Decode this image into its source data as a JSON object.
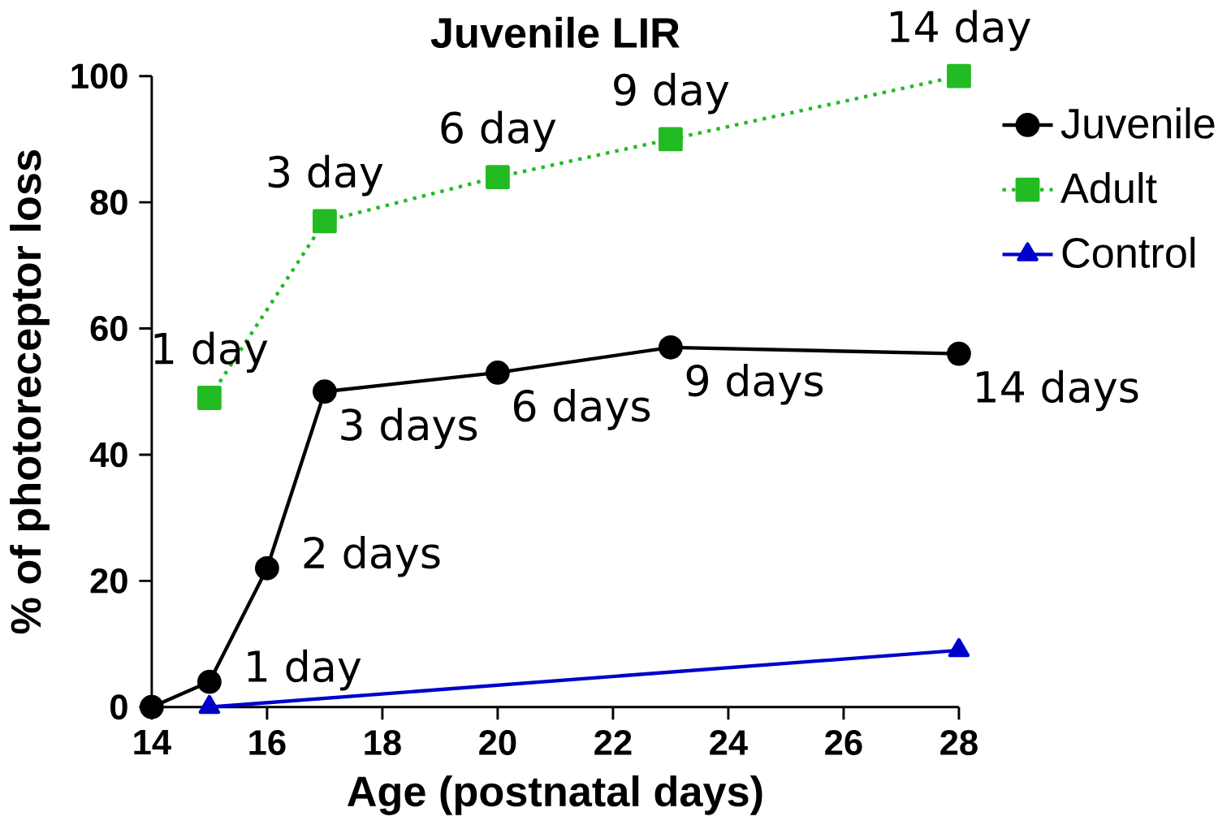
{
  "chart_data": {
    "type": "line",
    "title": "Juvenile LIR",
    "xlabel": "Age (postnatal days)",
    "ylabel": "% of photoreceptor loss",
    "xlim": [
      14,
      28
    ],
    "ylim": [
      0,
      100
    ],
    "xticks": [
      14,
      16,
      18,
      20,
      22,
      24,
      26,
      28
    ],
    "yticks": [
      0,
      20,
      40,
      60,
      80,
      100
    ],
    "grid": false,
    "legend": "right",
    "series": [
      {
        "name": "Juvenile",
        "color": "#000000",
        "marker": "circle",
        "line_style": "solid",
        "x": [
          14,
          15,
          16,
          17,
          20,
          23,
          28
        ],
        "values": [
          0,
          4,
          22,
          50,
          53,
          57,
          56
        ]
      },
      {
        "name": "Adult",
        "color": "#22bb22",
        "marker": "square",
        "line_style": "dotted",
        "x": [
          15,
          17,
          20,
          23,
          28
        ],
        "values": [
          49,
          77,
          84,
          90,
          100
        ]
      },
      {
        "name": "Control",
        "color": "#0000cc",
        "marker": "triangle",
        "line_style": "solid",
        "x": [
          15,
          28
        ],
        "values": [
          0,
          9
        ]
      }
    ],
    "annotations": [
      {
        "text": "1 day",
        "x": 15,
        "y": 4
      },
      {
        "text": "2 days",
        "x": 16,
        "y": 22
      },
      {
        "text": "3 days",
        "x": 17,
        "y": 50
      },
      {
        "text": "6 days",
        "x": 20,
        "y": 53
      },
      {
        "text": "9 days",
        "x": 23,
        "y": 57
      },
      {
        "text": "14 days",
        "x": 28,
        "y": 56
      },
      {
        "text": "1 day",
        "x": 15,
        "y": 49
      },
      {
        "text": "3 day",
        "x": 17,
        "y": 77
      },
      {
        "text": "6 day",
        "x": 20,
        "y": 84
      },
      {
        "text": "9 day",
        "x": 23,
        "y": 90
      },
      {
        "text": "14 day",
        "x": 28,
        "y": 100
      }
    ]
  }
}
